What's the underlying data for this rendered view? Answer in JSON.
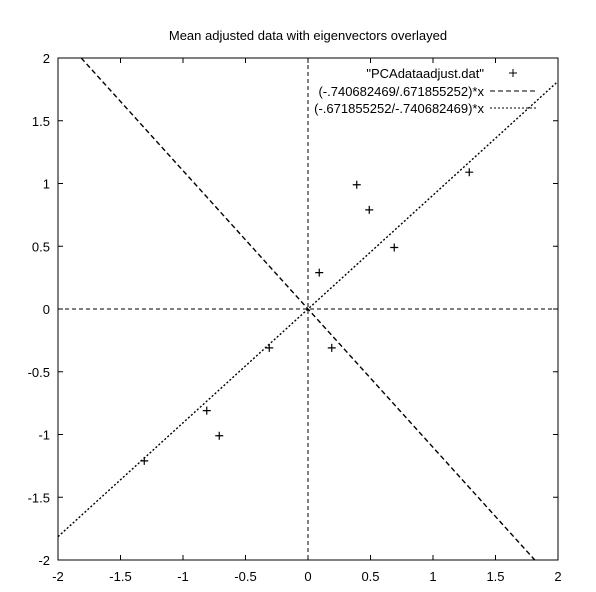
{
  "chart_data": {
    "type": "scatter",
    "title": "Mean adjusted data with eigenvectors overlayed",
    "xlabel": "",
    "ylabel": "",
    "xlim": [
      -2,
      2
    ],
    "ylim": [
      -2,
      2
    ],
    "xticks": [
      "-2",
      "-1.5",
      "-1",
      "-0.5",
      "0",
      "0.5",
      "1",
      "1.5",
      "2"
    ],
    "yticks": [
      "-2",
      "-1.5",
      "-1",
      "-0.5",
      "0",
      "0.5",
      "1",
      "1.5",
      "2"
    ],
    "grid": false,
    "legend_position": "top-right",
    "series": [
      {
        "name": "\"PCAdataadjust.dat\"",
        "style": "points",
        "marker": "+",
        "x": [
          0.69,
          -1.31,
          0.39,
          0.09,
          1.29,
          0.49,
          0.19,
          -0.81,
          -0.31,
          -0.71
        ],
        "y": [
          0.49,
          -1.21,
          0.99,
          0.29,
          1.09,
          0.79,
          -0.31,
          -0.81,
          -0.31,
          -1.01
        ]
      },
      {
        "name": "(-.740682469/.671855252)*x",
        "style": "dashed-line",
        "slope": -1.1024
      },
      {
        "name": "(-.671855252/-.740682469)*x",
        "style": "dotted-line",
        "slope": 0.9071
      }
    ]
  }
}
